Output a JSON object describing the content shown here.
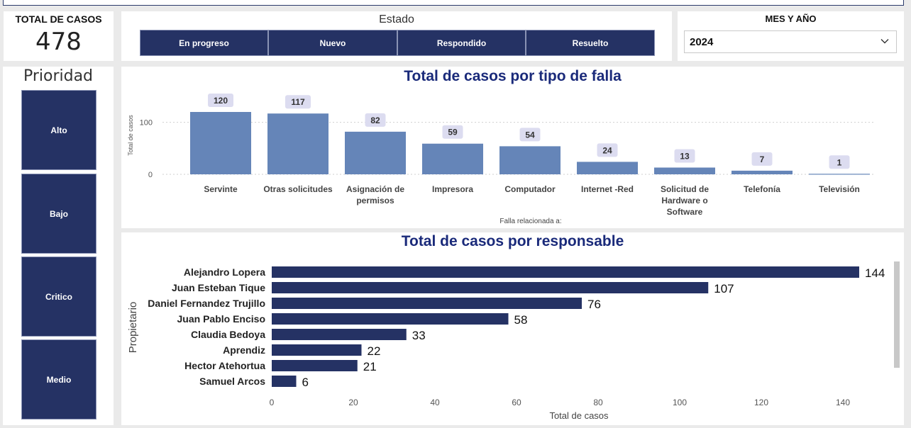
{
  "kpi": {
    "label": "TOTAL DE CASOS",
    "value": "478"
  },
  "estado": {
    "title": "Estado",
    "options": [
      "En progreso",
      "Nuevo",
      "Respondido",
      "Resuelto"
    ]
  },
  "mes": {
    "label": "MES Y AÑO",
    "selected": "2024",
    "icon": "chevron-down-icon"
  },
  "prioridad": {
    "title": "Prioridad",
    "options": [
      "Alto",
      "Bajo",
      "Critico",
      "Medio"
    ]
  },
  "colors": {
    "navy": "#253264",
    "bar": "#6585b8",
    "label_bg": "#dcdcf0",
    "title": "#1a2a7a"
  },
  "chart_data": [
    {
      "type": "bar",
      "title": "Total de casos por tipo de falla",
      "xlabel": "Falla relacionada a:",
      "ylabel": "Total de casos",
      "categories": [
        "Servinte",
        "Otras solicitudes",
        "Asignación de permisos",
        "Impresora",
        "Computador",
        "Internet -Red",
        "Solicitud de Hardware o Software",
        "Telefonía",
        "Televisión"
      ],
      "category_lines": [
        [
          "Servinte"
        ],
        [
          "Otras solicitudes"
        ],
        [
          "Asignación de",
          "permisos"
        ],
        [
          "Impresora"
        ],
        [
          "Computador"
        ],
        [
          "Internet -Red"
        ],
        [
          "Solicitud de",
          "Hardware o",
          "Software"
        ],
        [
          "Telefonía"
        ],
        [
          "Televisión"
        ]
      ],
      "values": [
        120,
        117,
        82,
        59,
        54,
        24,
        13,
        7,
        1
      ],
      "yticks": [
        0,
        100
      ],
      "ylim": [
        0,
        120
      ]
    },
    {
      "type": "bar",
      "orientation": "horizontal",
      "title": "Total de casos por responsable",
      "xlabel": "Total de casos",
      "ylabel": "Propietario",
      "categories": [
        "Alejandro Lopera",
        "Juan Esteban Tique",
        "Daniel Fernandez Trujillo",
        "Juan Pablo Enciso",
        "Claudia Bedoya",
        "Aprendiz",
        "Hector Atehortua",
        "Samuel Arcos"
      ],
      "values": [
        144,
        107,
        76,
        58,
        33,
        22,
        21,
        6
      ],
      "xticks": [
        0,
        20,
        40,
        60,
        80,
        100,
        120,
        140
      ],
      "xlim": [
        0,
        144
      ]
    }
  ]
}
